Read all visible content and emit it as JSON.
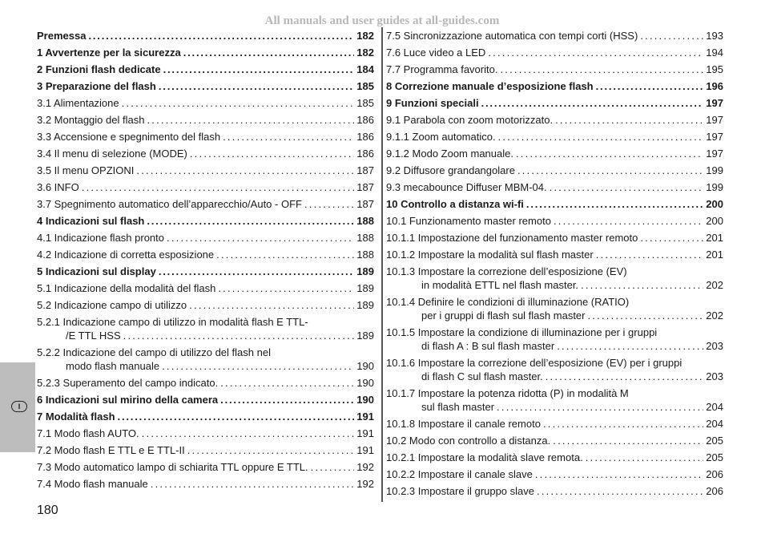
{
  "watermark": "All manuals and user guides at all-guides.com",
  "page_number": "180",
  "language_tab": "I",
  "toc_left": [
    {
      "title": "Premessa",
      "page": "182",
      "bold": true
    },
    {
      "title": "1 Avvertenze per la sicurezza",
      "page": "182",
      "bold": true
    },
    {
      "title": "2 Funzioni flash dedicate",
      "page": "184",
      "bold": true
    },
    {
      "title": "3 Preparazione del flash",
      "page": "185",
      "bold": true
    },
    {
      "title": "3.1 Alimentazione",
      "page": "185"
    },
    {
      "title": "3.2 Montaggio del flash",
      "page": "186"
    },
    {
      "title": "3.3 Accensione e spegnimento del flash",
      "page": "186"
    },
    {
      "title": "3.4 Il menu di selezione (MODE)",
      "page": "186"
    },
    {
      "title": "3.5 Il menu OPZIONI",
      "page": "187"
    },
    {
      "title": "3.6 INFO",
      "page": "187"
    },
    {
      "title": "3.7 Spegnimento automatico dell’apparecchio/Auto - OFF",
      "page": "187"
    },
    {
      "title": "4 Indicazioni sul flash",
      "page": "188",
      "bold": true
    },
    {
      "title": "4.1 Indicazione flash pronto",
      "page": "188"
    },
    {
      "title": "4.2 Indicazione di corretta esposizione",
      "page": "188"
    },
    {
      "title": "5 Indicazioni sul display",
      "page": "189",
      "bold": true
    },
    {
      "title": "5.1 Indicazione della modalità del flash",
      "page": "189"
    },
    {
      "title": "5.2 Indicazione campo di utilizzo",
      "page": "189"
    },
    {
      "title": "5.2.1 Indicazione campo di utilizzo in modalità flash E TTL-",
      "cont": "/E TTL HSS",
      "page": "189"
    },
    {
      "title": "5.2.2 Indicazione del campo di utilizzo del flash nel",
      "cont": "modo flash manuale",
      "page": "190"
    },
    {
      "title": "5.2.3 Superamento del campo indicato.",
      "page": "190"
    },
    {
      "title": "6 Indicazioni sul mirino della camera",
      "page": "190",
      "bold": true
    },
    {
      "title": "7 Modalità flash",
      "page": "191",
      "bold": true
    },
    {
      "title": "7.1 Modo flash AUTO.",
      "page": "191"
    },
    {
      "title": "7.2 Modo flash E TTL e E TTL-II",
      "page": "191"
    },
    {
      "title": "7.3 Modo automatico lampo di schiarita TTL oppure E TTL.",
      "page": "192"
    },
    {
      "title": "7.4 Modo flash manuale",
      "page": "192"
    }
  ],
  "toc_right": [
    {
      "title": "7.5 Sincronizzazione automatica con tempi corti (HSS)",
      "page": "193"
    },
    {
      "title": "7.6 Luce video a LED",
      "page": "194"
    },
    {
      "title": "7.7 Programma favorito.",
      "page": "195"
    },
    {
      "title": "8  Correzione manuale d’esposizione flash",
      "page": "196",
      "bold": true
    },
    {
      "title": "9 Funzioni speciali",
      "page": "197",
      "bold": true
    },
    {
      "title": "9.1 Parabola con zoom motorizzato.",
      "page": "197"
    },
    {
      "title": "9.1.1 Zoom automatico.",
      "page": "197"
    },
    {
      "title": "9.1.2 Modo Zoom manuale.",
      "page": "197"
    },
    {
      "title": "9.2 Diffusore grandangolare",
      "page": "199"
    },
    {
      "title": "9.3 mecabounce Diffuser MBM-04.",
      "page": "199"
    },
    {
      "title": "10 Controllo a distanza wi-fi",
      "page": "200",
      "bold": true
    },
    {
      "title": "10.1 Funzionamento master remoto",
      "page": "200"
    },
    {
      "title": "10.1.1 Impostazione del funzionamento master remoto",
      "page": "201"
    },
    {
      "title": "10.1.2 Impostare la modalità sul flash master",
      "page": "201"
    },
    {
      "title": "10.1.3 Impostare la correzione dell’esposizione (EV)",
      "cont": "in modalità ETTL nel flash master.",
      "page": "202"
    },
    {
      "title": "10.1.4 Definire le condizioni di illuminazione (RATIO)",
      "cont": "per i gruppi di flash sul flash master",
      "page": "202"
    },
    {
      "title": "10.1.5 Impostare la condizione di illuminazione per i gruppi",
      "cont": "di flash A : B sul flash master",
      "page": "203"
    },
    {
      "title": "10.1.6 Impostare la correzione dell’esposizione (EV) per i gruppi",
      "cont": "di flash C sul flash master.",
      "page": "203"
    },
    {
      "title": "10.1.7 Impostare la potenza ridotta (P) in modalità M",
      "cont": "sul flash master",
      "page": "204"
    },
    {
      "title": "10.1.8 Impostare il canale remoto",
      "page": "204"
    },
    {
      "title": "10.2 Modo con controllo a distanza.",
      "page": "205"
    },
    {
      "title": "10.2.1 Impostare la modalità slave remota.",
      "page": "205"
    },
    {
      "title": "10.2.2 Impostare il canale slave",
      "page": "206"
    },
    {
      "title": "10.2.3 Impostare il gruppo slave",
      "page": "206"
    }
  ]
}
